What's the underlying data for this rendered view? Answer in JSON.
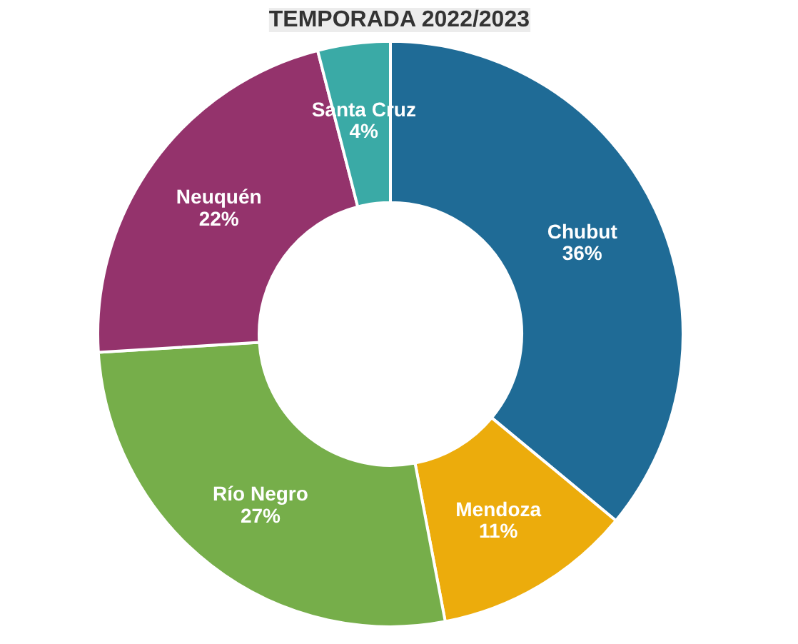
{
  "chart_data": {
    "type": "donut",
    "title": "TEMPORADA 2022/2023",
    "categories": [
      "Chubut",
      "Mendoza",
      "Río Negro",
      "Neuquén",
      "Santa Cruz"
    ],
    "values": [
      36,
      11,
      27,
      22,
      4
    ],
    "value_labels": [
      "36%",
      "11%",
      "27%",
      "22%",
      "4%"
    ],
    "colors": [
      "#1f6b96",
      "#ecac0c",
      "#76ae4a",
      "#94336c",
      "#3aaaa6"
    ]
  }
}
